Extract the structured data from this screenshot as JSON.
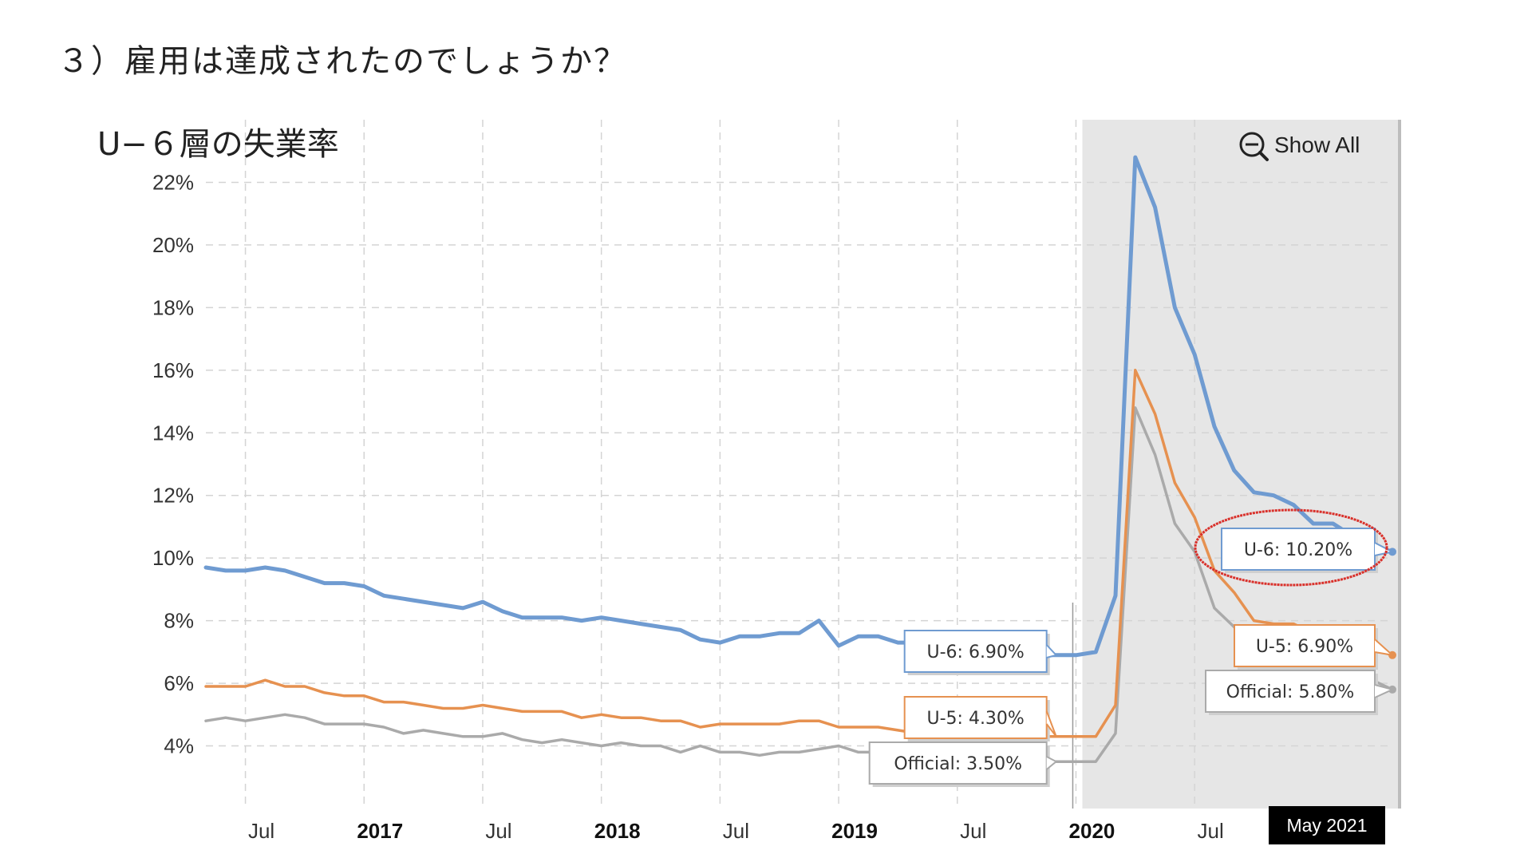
{
  "slide_title": "３）雇用は達成されたのでしょうか？",
  "chart_data": {
    "type": "line",
    "title": "U−６層の失業率",
    "x_start": "2016-05",
    "x_end": "2021-05",
    "ylim": [
      2,
      24
    ],
    "y_ticks": [
      "4%",
      "6%",
      "8%",
      "10%",
      "12%",
      "14%",
      "16%",
      "18%",
      "20%",
      "22%"
    ],
    "x_ticks": [
      {
        "label": "Jul",
        "date": "2016-07",
        "major": false
      },
      {
        "label": "2017",
        "date": "2017-01",
        "major": true
      },
      {
        "label": "Jul",
        "date": "2017-07",
        "major": false
      },
      {
        "label": "2018",
        "date": "2018-01",
        "major": true
      },
      {
        "label": "Jul",
        "date": "2018-07",
        "major": false
      },
      {
        "label": "2019",
        "date": "2019-01",
        "major": true
      },
      {
        "label": "Jul",
        "date": "2019-07",
        "major": false
      },
      {
        "label": "2020",
        "date": "2020-01",
        "major": true
      },
      {
        "label": "Jul",
        "date": "2020-07",
        "major": false
      }
    ],
    "grid": true,
    "shaded_range": [
      "2020-01",
      "2021-05"
    ],
    "series": [
      {
        "name": "U-6",
        "color": "#6f9bd1",
        "x": [
          "2016-05",
          "2016-06",
          "2016-07",
          "2016-08",
          "2016-09",
          "2016-10",
          "2016-11",
          "2016-12",
          "2017-01",
          "2017-02",
          "2017-03",
          "2017-04",
          "2017-05",
          "2017-06",
          "2017-07",
          "2017-08",
          "2017-09",
          "2017-10",
          "2017-11",
          "2017-12",
          "2018-01",
          "2018-02",
          "2018-03",
          "2018-04",
          "2018-05",
          "2018-06",
          "2018-07",
          "2018-08",
          "2018-09",
          "2018-10",
          "2018-11",
          "2018-12",
          "2019-01",
          "2019-02",
          "2019-03",
          "2019-04",
          "2019-05",
          "2019-06",
          "2019-07",
          "2019-08",
          "2019-09",
          "2019-10",
          "2019-11",
          "2019-12",
          "2020-01",
          "2020-02",
          "2020-03",
          "2020-04",
          "2020-05",
          "2020-06",
          "2020-07",
          "2020-08",
          "2020-09",
          "2020-10",
          "2020-11",
          "2020-12",
          "2021-01",
          "2021-02",
          "2021-03",
          "2021-04",
          "2021-05"
        ],
        "y": [
          9.7,
          9.6,
          9.6,
          9.7,
          9.6,
          9.4,
          9.2,
          9.2,
          9.1,
          8.8,
          8.7,
          8.6,
          8.5,
          8.4,
          8.6,
          8.3,
          8.1,
          8.1,
          8.1,
          8.0,
          8.1,
          8.0,
          7.9,
          7.8,
          7.7,
          7.4,
          7.3,
          7.5,
          7.5,
          7.6,
          7.6,
          8.0,
          7.2,
          7.5,
          7.5,
          7.3,
          7.3,
          7.2,
          7.0,
          7.2,
          6.9,
          7.0,
          6.9,
          6.9,
          6.9,
          7.0,
          8.8,
          22.8,
          21.2,
          18.0,
          16.5,
          14.2,
          12.8,
          12.1,
          12.0,
          11.7,
          11.1,
          11.1,
          10.7,
          10.4,
          10.2
        ]
      },
      {
        "name": "U-5",
        "color": "#e69150",
        "x": [
          "2016-05",
          "2016-06",
          "2016-07",
          "2016-08",
          "2016-09",
          "2016-10",
          "2016-11",
          "2016-12",
          "2017-01",
          "2017-02",
          "2017-03",
          "2017-04",
          "2017-05",
          "2017-06",
          "2017-07",
          "2017-08",
          "2017-09",
          "2017-10",
          "2017-11",
          "2017-12",
          "2018-01",
          "2018-02",
          "2018-03",
          "2018-04",
          "2018-05",
          "2018-06",
          "2018-07",
          "2018-08",
          "2018-09",
          "2018-10",
          "2018-11",
          "2018-12",
          "2019-01",
          "2019-02",
          "2019-03",
          "2019-04",
          "2019-05",
          "2019-06",
          "2019-07",
          "2019-08",
          "2019-09",
          "2019-10",
          "2019-11",
          "2019-12",
          "2020-01",
          "2020-02",
          "2020-03",
          "2020-04",
          "2020-05",
          "2020-06",
          "2020-07",
          "2020-08",
          "2020-09",
          "2020-10",
          "2020-11",
          "2020-12",
          "2021-01",
          "2021-02",
          "2021-03",
          "2021-04",
          "2021-05"
        ],
        "y": [
          5.9,
          5.9,
          5.9,
          6.1,
          5.9,
          5.9,
          5.7,
          5.6,
          5.6,
          5.4,
          5.4,
          5.3,
          5.2,
          5.2,
          5.3,
          5.2,
          5.1,
          5.1,
          5.1,
          4.9,
          5.0,
          4.9,
          4.9,
          4.8,
          4.8,
          4.6,
          4.7,
          4.7,
          4.7,
          4.7,
          4.8,
          4.8,
          4.6,
          4.6,
          4.6,
          4.5,
          4.4,
          4.5,
          4.4,
          4.4,
          4.3,
          4.4,
          4.3,
          4.3,
          4.3,
          4.3,
          5.3,
          16.0,
          14.6,
          12.4,
          11.3,
          9.6,
          8.9,
          8.0,
          7.9,
          7.9,
          7.6,
          7.5,
          7.3,
          7.1,
          6.9
        ]
      },
      {
        "name": "Official",
        "color": "#aaaaaa",
        "x": [
          "2016-05",
          "2016-06",
          "2016-07",
          "2016-08",
          "2016-09",
          "2016-10",
          "2016-11",
          "2016-12",
          "2017-01",
          "2017-02",
          "2017-03",
          "2017-04",
          "2017-05",
          "2017-06",
          "2017-07",
          "2017-08",
          "2017-09",
          "2017-10",
          "2017-11",
          "2017-12",
          "2018-01",
          "2018-02",
          "2018-03",
          "2018-04",
          "2018-05",
          "2018-06",
          "2018-07",
          "2018-08",
          "2018-09",
          "2018-10",
          "2018-11",
          "2018-12",
          "2019-01",
          "2019-02",
          "2019-03",
          "2019-04",
          "2019-05",
          "2019-06",
          "2019-07",
          "2019-08",
          "2019-09",
          "2019-10",
          "2019-11",
          "2019-12",
          "2020-01",
          "2020-02",
          "2020-03",
          "2020-04",
          "2020-05",
          "2020-06",
          "2020-07",
          "2020-08",
          "2020-09",
          "2020-10",
          "2020-11",
          "2020-12",
          "2021-01",
          "2021-02",
          "2021-03",
          "2021-04",
          "2021-05"
        ],
        "y": [
          4.8,
          4.9,
          4.8,
          4.9,
          5.0,
          4.9,
          4.7,
          4.7,
          4.7,
          4.6,
          4.4,
          4.5,
          4.4,
          4.3,
          4.3,
          4.4,
          4.2,
          4.1,
          4.2,
          4.1,
          4.0,
          4.1,
          4.0,
          4.0,
          3.8,
          4.0,
          3.8,
          3.8,
          3.7,
          3.8,
          3.8,
          3.9,
          4.0,
          3.8,
          3.8,
          3.6,
          3.6,
          3.7,
          3.7,
          3.7,
          3.5,
          3.6,
          3.5,
          3.5,
          3.5,
          3.5,
          4.4,
          14.8,
          13.3,
          11.1,
          10.2,
          8.4,
          7.8,
          6.9,
          6.7,
          6.7,
          6.3,
          6.2,
          6.0,
          6.1,
          5.8
        ]
      }
    ],
    "tooltips": [
      {
        "label": "U-6: 6.90%",
        "date": "2019-12",
        "value": 6.9,
        "color": "#6f9bd1"
      },
      {
        "label": "U-5: 4.30%",
        "date": "2019-12",
        "value": 4.3,
        "color": "#e69150"
      },
      {
        "label": "Official: 3.50%",
        "date": "2019-12",
        "value": 3.5,
        "color": "#aaaaaa"
      },
      {
        "label": "U-6: 10.20%",
        "date": "2021-05",
        "value": 10.2,
        "color": "#6f9bd1"
      },
      {
        "label": "U-5: 6.90%",
        "date": "2021-05",
        "value": 6.9,
        "color": "#e69150"
      },
      {
        "label": "Official: 5.80%",
        "date": "2021-05",
        "value": 5.8,
        "color": "#aaaaaa"
      }
    ],
    "highlight": {
      "label": "U-6: 10.20%",
      "color": "#d9302a"
    },
    "show_all": "Show All",
    "range_label": "May 2021"
  }
}
